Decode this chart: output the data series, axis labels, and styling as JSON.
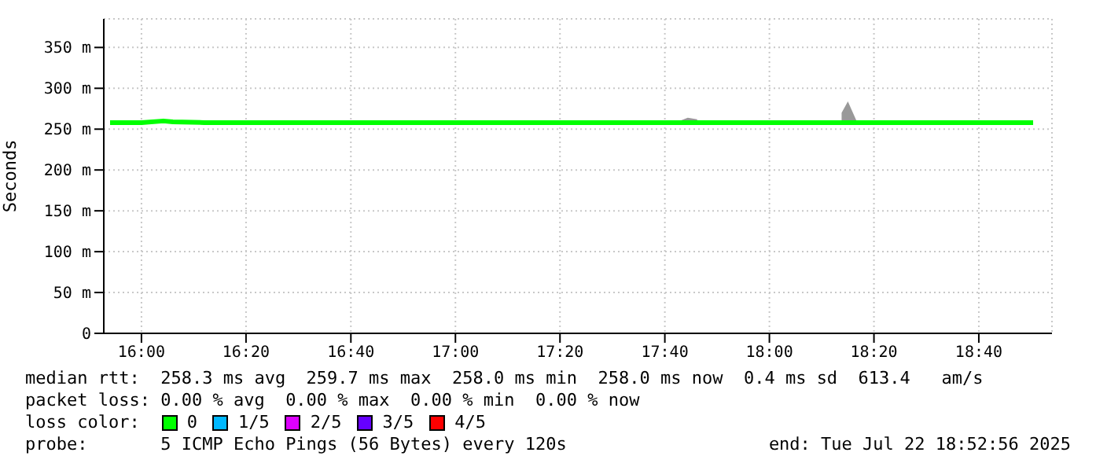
{
  "chart_data": {
    "type": "line",
    "ylabel": "Seconds",
    "legend_title": "loss color:",
    "legend": "bottom",
    "grid": true,
    "marker": "none",
    "line_style": "solid",
    "xlim": [
      15.88,
      18.9
    ],
    "xticks": [
      {
        "value": 16,
        "label": "16:00"
      },
      {
        "value": 16.333,
        "label": "16:20"
      },
      {
        "value": 16.667,
        "label": "16:40"
      },
      {
        "value": 17,
        "label": "17:00"
      },
      {
        "value": 17.333,
        "label": "17:20"
      },
      {
        "value": 17.667,
        "label": "17:40"
      },
      {
        "value": 18,
        "label": "18:00"
      },
      {
        "value": 18.333,
        "label": "18:20"
      },
      {
        "value": 18.667,
        "label": "18:40"
      }
    ],
    "ylim": [
      0,
      385
    ],
    "yticks": [
      0,
      {
        "value": 50,
        "label": "50 m"
      },
      {
        "value": 100,
        "label": "100 m"
      },
      {
        "value": 150,
        "label": "150 m"
      },
      {
        "value": 200,
        "label": "200 m"
      },
      {
        "value": 250,
        "label": "250 m"
      },
      {
        "value": 300,
        "label": "300 m"
      },
      {
        "value": 350,
        "label": "350 m"
      }
    ],
    "series": [
      {
        "name": "0",
        "color": "#00ff00",
        "x": [
          15.9,
          16.0,
          16.07,
          16.1,
          16.2,
          16.3,
          16.4,
          16.5,
          16.6,
          16.7,
          16.8,
          16.9,
          17.0,
          17.1,
          17.2,
          17.3,
          17.4,
          17.5,
          17.6,
          17.7,
          17.74,
          17.77,
          17.8,
          17.9,
          18.0,
          18.1,
          18.2,
          18.23,
          18.25,
          18.28,
          18.3,
          18.4,
          18.5,
          18.6,
          18.7,
          18.8,
          18.84
        ],
        "values": [
          258,
          258,
          260,
          259,
          258,
          258,
          258,
          258,
          258,
          258,
          258,
          258,
          258,
          258,
          258,
          258,
          258,
          258,
          258,
          258,
          258,
          258,
          258,
          258,
          258,
          258,
          258,
          258,
          258,
          258,
          258,
          258,
          258,
          258,
          258,
          258,
          258
        ],
        "lower": [
          null,
          null,
          null,
          null,
          null,
          null,
          null,
          null,
          null,
          null,
          null,
          null,
          null,
          null,
          null,
          null,
          null,
          null,
          null,
          257,
          257,
          257,
          null,
          null,
          null,
          null,
          null,
          257,
          257,
          257,
          null,
          null,
          null,
          null,
          null,
          null,
          null
        ],
        "upper": [
          null,
          null,
          null,
          null,
          null,
          null,
          null,
          null,
          null,
          null,
          null,
          null,
          null,
          null,
          null,
          null,
          null,
          null,
          null,
          258,
          264,
          262,
          null,
          null,
          null,
          null,
          null,
          270,
          284,
          258,
          null,
          null,
          null,
          null,
          null,
          null,
          null
        ]
      },
      {
        "name": "1/5",
        "color": "#00b8ff"
      },
      {
        "name": "2/5",
        "color": "#dd00ff"
      },
      {
        "name": "3/5",
        "color": "#6600ff"
      },
      {
        "name": "4/5",
        "color": "#ff0000"
      }
    ],
    "annotations": [
      "median rtt:  258.3 ms avg  259.7 ms max  258.0 ms min  258.0 ms now  0.4 ms sd  613.4   am/s",
      "packet loss: 0.00 % avg  0.00 % max  0.00 % min  0.00 % now",
      "probe:       5 ICMP Echo Pings (56 Bytes) every 120s",
      "end: Tue Jul 22 18:52:56 2025"
    ]
  }
}
